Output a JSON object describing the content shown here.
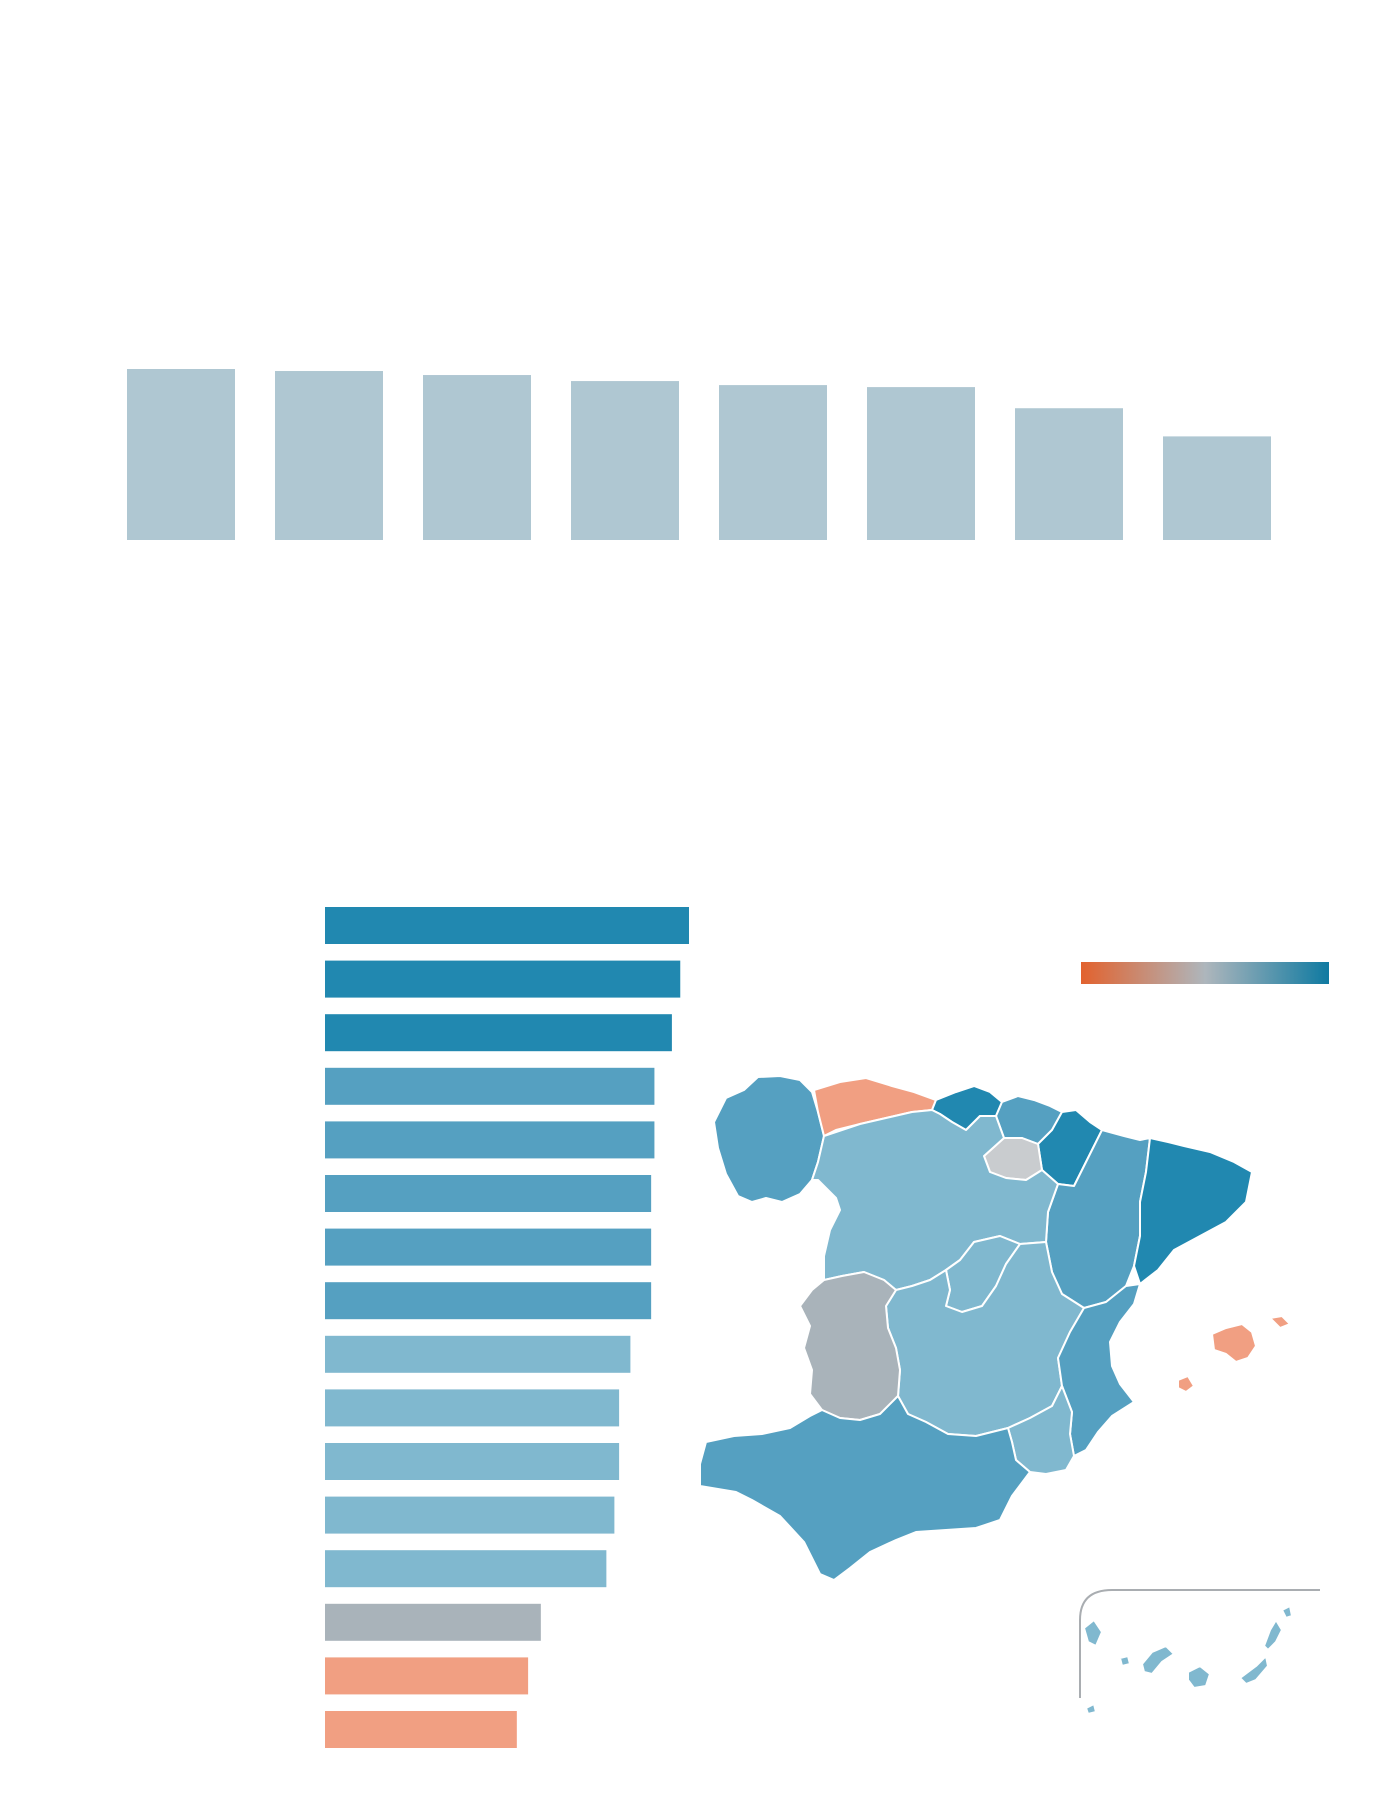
{
  "colors": {
    "top_bar": "#AFC7D2",
    "scale_low": "#E2622E",
    "scale_mid": "#AEB6BC",
    "scale_high": "#0F7AA1",
    "tier_1": "#2188B0",
    "tier_2": "#55A0C1",
    "tier_3": "#80B8CF",
    "tier_neutral": "#A9B3BA",
    "tier_low": "#F19F82",
    "map_light_grey": "#C9CCCF",
    "canary_frame": "#A9ADB1"
  },
  "chart_data": [
    {
      "type": "bar",
      "orientation": "vertical",
      "categories": [
        "",
        "",
        "",
        "",
        "",
        "",
        "",
        ""
      ],
      "values": [
        170,
        168,
        164,
        158,
        154,
        152,
        131,
        103
      ],
      "ylim": [
        0,
        170
      ],
      "title": "",
      "xlabel": "",
      "ylabel": ""
    },
    {
      "type": "bar",
      "orientation": "horizontal",
      "categories": [
        "",
        "",
        "",
        "",
        "",
        "",
        "",
        "",
        "",
        "",
        "",
        "",
        "",
        "",
        "",
        ""
      ],
      "values": [
        100,
        97.6,
        95.3,
        90.5,
        90.5,
        89.6,
        89.6,
        89.6,
        83.9,
        80.8,
        80.8,
        79.5,
        77.3,
        59.3,
        55.8,
        52.7
      ],
      "tiers": [
        "tier_1",
        "tier_1",
        "tier_1",
        "tier_2",
        "tier_2",
        "tier_2",
        "tier_2",
        "tier_2",
        "tier_3",
        "tier_3",
        "tier_3",
        "tier_3",
        "tier_3",
        "tier_neutral",
        "tier_low",
        "tier_low"
      ],
      "xlim": [
        0,
        100
      ],
      "title": "",
      "xlabel": "",
      "ylabel": ""
    }
  ],
  "map": {
    "regions": [
      {
        "id": "galicia",
        "tier": "tier_2"
      },
      {
        "id": "asturias",
        "tier": "tier_low"
      },
      {
        "id": "cantabria",
        "tier": "tier_1"
      },
      {
        "id": "pais-vasco",
        "tier": "tier_2"
      },
      {
        "id": "navarra",
        "tier": "tier_1"
      },
      {
        "id": "la-rioja",
        "tier": "map_light_grey"
      },
      {
        "id": "aragon",
        "tier": "tier_2"
      },
      {
        "id": "cataluna",
        "tier": "tier_1"
      },
      {
        "id": "castilla-y-leon",
        "tier": "tier_3"
      },
      {
        "id": "madrid",
        "tier": "tier_3"
      },
      {
        "id": "castilla-la-mancha",
        "tier": "tier_3"
      },
      {
        "id": "extremadura",
        "tier": "tier_neutral"
      },
      {
        "id": "comunidad-valenciana",
        "tier": "tier_2"
      },
      {
        "id": "murcia",
        "tier": "tier_3"
      },
      {
        "id": "andalucia",
        "tier": "tier_2"
      },
      {
        "id": "baleares",
        "tier": "tier_low"
      },
      {
        "id": "canarias",
        "tier": "tier_3"
      }
    ]
  }
}
